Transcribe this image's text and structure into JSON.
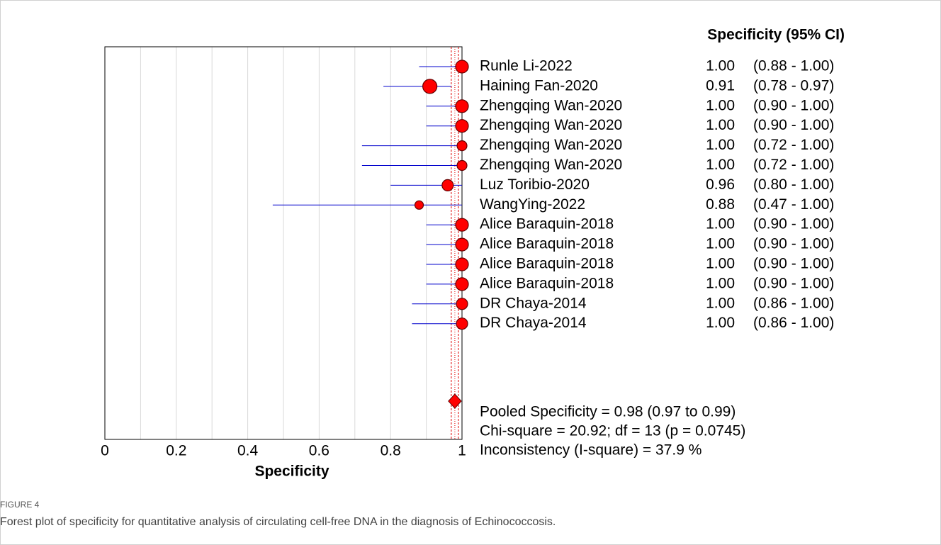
{
  "chart_data": {
    "type": "forest",
    "column_title": "Specificity (95% CI)",
    "xlabel": "Specificity",
    "categories": [
      "Runle Li-2022",
      "Haining Fan-2020",
      "Zhengqing Wan-2020",
      "Zhengqing Wan-2020",
      "Zhengqing Wan-2020",
      "Zhengqing Wan-2020",
      "Luz Toribio-2020",
      "WangYing-2022",
      "Alice Baraquin-2018",
      "Alice Baraquin-2018",
      "Alice Baraquin-2018",
      "Alice Baraquin-2018",
      "DR Chaya-2014",
      "DR Chaya-2014"
    ],
    "values": [
      1,
      0.91,
      1,
      1,
      1,
      1,
      0.96,
      0.88,
      1,
      1,
      1,
      1,
      1,
      1
    ],
    "value_labels": [
      "1.00",
      "0.91",
      "1.00",
      "1.00",
      "1.00",
      "1.00",
      "0.96",
      "0.88",
      "1.00",
      "1.00",
      "1.00",
      "1.00",
      "1.00",
      "1.00"
    ],
    "ci_low": [
      0.88,
      0.78,
      0.9,
      0.9,
      0.72,
      0.72,
      0.8,
      0.47,
      0.9,
      0.9,
      0.9,
      0.9,
      0.86,
      0.86
    ],
    "ci_high": [
      1,
      0.97,
      1,
      1,
      1,
      1,
      1,
      1,
      1,
      1,
      1,
      1,
      1,
      1
    ],
    "ci_labels": [
      "(0.88 - 1.00)",
      "(0.78 - 0.97)",
      "(0.90 - 1.00)",
      "(0.90 - 1.00)",
      "(0.72 - 1.00)",
      "(0.72 - 1.00)",
      "(0.80 - 1.00)",
      "(0.47 - 1.00)",
      "(0.90 - 1.00)",
      "(0.90 - 1.00)",
      "(0.90 - 1.00)",
      "(0.90 - 1.00)",
      "(0.86 - 1.00)",
      "(0.86 - 1.00)"
    ],
    "weights": [
      9,
      10,
      9,
      9,
      7,
      7,
      8,
      6,
      9,
      9,
      9,
      9,
      8,
      8
    ],
    "pooled": {
      "value": 0.98,
      "low": 0.97,
      "high": 0.99
    },
    "annotations": [
      "Pooled Specificity = 0.98 (0.97 to 0.99)",
      "Chi-square = 20.92; df =  13 (p = 0.0745)",
      "Inconsistency (I-square) = 37.9 %"
    ],
    "xlim": [
      0,
      1
    ],
    "xticks": [
      0,
      0.2,
      0.4,
      0.6,
      0.8,
      1
    ],
    "xminorticks": [
      0.1,
      0.3,
      0.5,
      0.7,
      0.9
    ],
    "grid": true,
    "marker_color": "#ff0000",
    "ci_color": "#0000cc"
  },
  "figure": {
    "label": "FIGURE 4",
    "caption": "Forest plot of specificity for quantitative analysis of circulating cell-free DNA in the diagnosis of Echinococcosis."
  }
}
